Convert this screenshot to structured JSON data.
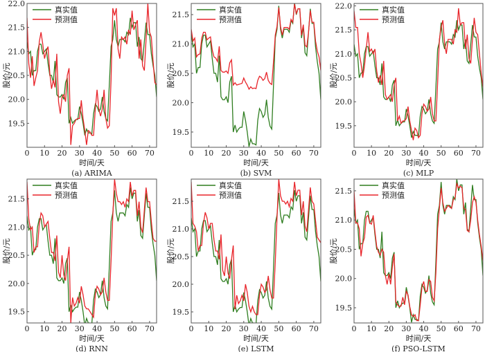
{
  "colors": {
    "true": "#2e7d1f",
    "pred": "#e8242a",
    "axis": "#555555"
  },
  "chart_data": {
    "type": "line",
    "xlabel": "时间/天",
    "ylabel": "股价/元",
    "xticks": [
      0,
      10,
      20,
      30,
      40,
      50,
      60,
      70
    ],
    "xlim": [
      0,
      74
    ],
    "legend": {
      "true": "真实值",
      "pred": "预测值",
      "placement": "top-left"
    },
    "true_values": [
      21.2,
      20.95,
      21.0,
      20.5,
      20.6,
      20.6,
      21.0,
      21.15,
      21.15,
      20.95,
      21.0,
      21.05,
      20.75,
      20.5,
      20.5,
      20.35,
      20.8,
      20.1,
      20.05,
      20.05,
      20.1,
      20.0,
      20.35,
      20.45,
      19.5,
      19.62,
      19.5,
      19.55,
      19.58,
      19.58,
      19.85,
      19.7,
      19.5,
      19.25,
      19.38,
      19.3,
      19.3,
      19.28,
      19.7,
      19.9,
      19.85,
      19.75,
      19.8,
      20.05,
      19.75,
      19.6,
      19.55,
      20.3,
      21.1,
      21.25,
      21.65,
      21.25,
      21.1,
      21.25,
      21.25,
      21.25,
      21.2,
      21.4,
      21.35,
      21.7,
      21.5,
      21.6,
      21.6,
      21.1,
      21.3,
      20.85,
      20.8,
      21.2,
      21.6,
      21.35,
      21.35,
      20.95,
      20.7,
      20.5,
      20.05
    ],
    "panels": [
      {
        "caption": "(a) ARIMA",
        "ylim": [
          19.0,
          22.0
        ],
        "yticks": [
          "19.5",
          "20.0",
          "20.5",
          "21.0",
          "21.5",
          "22.0"
        ],
        "pred_values": [
          21.7,
          20.75,
          20.45,
          20.9,
          20.28,
          20.45,
          20.6,
          21.2,
          21.4,
          21.15,
          20.85,
          21.0,
          21.1,
          20.55,
          20.22,
          20.4,
          20.25,
          20.95,
          19.95,
          19.7,
          20.05,
          20.1,
          19.95,
          20.5,
          20.65,
          19.05,
          19.45,
          19.5,
          19.58,
          19.6,
          19.6,
          19.98,
          19.6,
          19.35,
          19.05,
          19.35,
          19.32,
          19.25,
          19.25,
          19.8,
          20.2,
          19.8,
          19.65,
          19.8,
          20.2,
          19.6,
          19.4,
          19.45,
          20.4,
          21.9,
          21.75,
          21.9,
          21.05,
          20.85,
          21.3,
          21.25,
          21.3,
          21.15,
          21.45,
          21.35,
          21.85,
          21.45,
          21.55,
          21.65,
          20.85,
          21.25,
          20.7,
          20.6,
          21.25,
          22.0,
          21.4,
          21.3,
          20.8,
          20.35,
          20.3
        ]
      },
      {
        "caption": "(b) SVM",
        "ylim": [
          19.24,
          21.69
        ],
        "yticks": [
          "19.5",
          "20.0",
          "20.5",
          "21.0",
          "21.5"
        ],
        "pred_values": [
          21.25,
          21.05,
          21.1,
          20.78,
          20.82,
          20.83,
          21.1,
          21.2,
          21.2,
          21.07,
          21.1,
          21.12,
          20.9,
          20.78,
          20.76,
          20.7,
          20.96,
          20.55,
          20.52,
          20.52,
          20.54,
          20.5,
          20.68,
          20.73,
          20.3,
          20.34,
          20.3,
          20.31,
          20.32,
          20.33,
          20.42,
          20.35,
          20.3,
          20.23,
          20.27,
          20.24,
          20.25,
          20.24,
          20.38,
          20.45,
          20.43,
          20.38,
          20.41,
          20.52,
          20.38,
          20.33,
          20.31,
          20.7,
          21.15,
          21.3,
          21.62,
          21.3,
          21.15,
          21.28,
          21.28,
          21.28,
          21.25,
          21.42,
          21.37,
          21.68,
          21.52,
          21.6,
          21.6,
          21.15,
          21.33,
          20.98,
          20.95,
          21.2,
          21.57,
          21.37,
          21.37,
          21.05,
          20.88,
          20.78,
          20.55
        ]
      },
      {
        "caption": "(c) MLP",
        "ylim": [
          19.05,
          22.05
        ],
        "yticks": [
          "19.5",
          "20.0",
          "20.5",
          "21.0",
          "21.5",
          "22.0"
        ],
        "pred_values": [
          21.9,
          21.55,
          21.55,
          21.0,
          20.8,
          20.5,
          20.75,
          21.1,
          21.45,
          21.05,
          21.1,
          21.0,
          21.1,
          20.65,
          20.4,
          20.55,
          20.35,
          20.85,
          20.15,
          20.05,
          20.1,
          20.15,
          20.0,
          20.35,
          20.5,
          19.6,
          19.7,
          19.55,
          19.6,
          19.6,
          19.65,
          19.9,
          19.6,
          19.4,
          19.2,
          19.45,
          19.4,
          19.25,
          19.3,
          19.75,
          19.95,
          19.9,
          19.8,
          19.85,
          20.1,
          19.75,
          19.6,
          19.6,
          20.4,
          21.3,
          21.55,
          21.7,
          21.2,
          21.0,
          21.3,
          21.3,
          21.3,
          21.2,
          21.5,
          21.45,
          21.95,
          21.6,
          21.65,
          21.65,
          21.1,
          21.4,
          20.9,
          20.8,
          21.3,
          21.75,
          21.45,
          21.4,
          21.0,
          20.6,
          20.3
        ]
      },
      {
        "caption": "(d) RNN",
        "ylim": [
          19.3,
          21.85
        ],
        "yticks": [
          "19.5",
          "20.0",
          "20.5",
          "21.0",
          "21.5"
        ],
        "pred_values": [
          21.8,
          21.15,
          20.95,
          21.0,
          20.55,
          20.65,
          20.65,
          21.05,
          21.25,
          21.2,
          21.0,
          21.05,
          21.1,
          20.8,
          20.55,
          20.55,
          20.4,
          20.85,
          20.2,
          20.1,
          20.5,
          20.15,
          20.05,
          20.4,
          20.65,
          19.3,
          19.75,
          19.6,
          19.65,
          19.75,
          19.65,
          19.95,
          19.8,
          19.6,
          19.55,
          19.55,
          19.5,
          19.45,
          19.4,
          19.8,
          19.95,
          19.9,
          19.8,
          19.85,
          20.1,
          19.85,
          19.7,
          19.7,
          20.4,
          21.2,
          21.85,
          21.6,
          21.45,
          21.45,
          21.4,
          21.45,
          21.35,
          21.5,
          21.45,
          21.8,
          21.55,
          21.65,
          21.65,
          21.2,
          21.45,
          21.0,
          20.9,
          21.3,
          21.7,
          21.45,
          21.45,
          21.1,
          20.8,
          20.75,
          20.75
        ]
      },
      {
        "caption": "(e) LSTM",
        "ylim": [
          19.3,
          21.9
        ],
        "yticks": [
          "19.5",
          "20.0",
          "20.5",
          "21.0",
          "21.5"
        ],
        "pred_values": [
          21.85,
          21.1,
          21.05,
          20.95,
          20.6,
          20.7,
          20.7,
          21.1,
          21.3,
          21.2,
          21.0,
          21.1,
          21.1,
          20.8,
          20.6,
          20.6,
          20.45,
          20.9,
          20.25,
          20.15,
          20.5,
          20.2,
          20.1,
          20.45,
          20.7,
          19.55,
          19.8,
          19.65,
          19.7,
          19.8,
          19.7,
          20.0,
          19.85,
          19.6,
          19.5,
          19.6,
          19.5,
          19.45,
          19.45,
          19.8,
          20.0,
          19.95,
          19.85,
          19.9,
          20.15,
          19.9,
          19.75,
          19.75,
          20.4,
          21.2,
          21.9,
          21.6,
          21.5,
          21.5,
          21.45,
          21.5,
          21.4,
          21.55,
          21.5,
          21.85,
          21.6,
          21.7,
          21.7,
          21.25,
          21.5,
          21.05,
          20.95,
          21.35,
          21.75,
          21.5,
          21.45,
          21.15,
          20.85,
          20.8,
          20.75
        ]
      },
      {
        "caption": "(f) PSO-LSTM",
        "ylim": [
          19.24,
          21.7
        ],
        "yticks": [
          "19.5",
          "20.0",
          "20.5",
          "21.0",
          "21.5"
        ],
        "pred_values": [
          21.5,
          20.95,
          20.95,
          20.85,
          20.38,
          20.6,
          20.7,
          21.05,
          21.08,
          20.95,
          20.93,
          21.08,
          20.8,
          20.55,
          20.45,
          20.4,
          20.5,
          20.45,
          20.05,
          19.9,
          20.08,
          19.9,
          20.2,
          20.42,
          19.6,
          19.55,
          19.52,
          19.53,
          19.68,
          19.55,
          19.78,
          19.72,
          19.52,
          19.38,
          19.35,
          19.38,
          19.28,
          19.28,
          19.55,
          19.85,
          19.95,
          19.78,
          19.78,
          19.98,
          19.95,
          19.68,
          19.62,
          20.1,
          20.85,
          21.2,
          21.55,
          21.3,
          21.15,
          21.2,
          21.25,
          21.22,
          21.2,
          21.35,
          21.38,
          21.62,
          21.55,
          21.58,
          21.55,
          21.2,
          21.18,
          20.82,
          20.8,
          21.0,
          21.3,
          21.4,
          21.3,
          21.0,
          20.75,
          20.55,
          20.3
        ]
      }
    ]
  }
}
